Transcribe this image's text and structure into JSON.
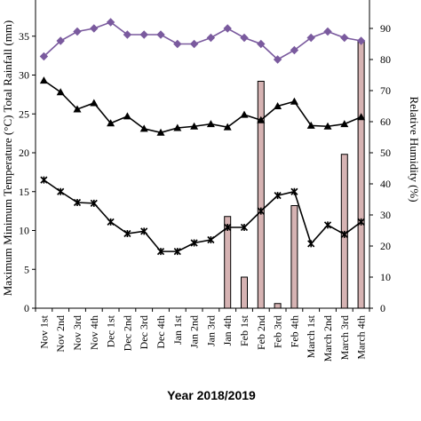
{
  "chart_data": {
    "type": "line",
    "xlabel": "Year 2018/2019",
    "ylabel_left": "Maximum Minimum Temperature (°C) Total Rainfall (mm)",
    "ylabel_right": "Relative Humidity (%)",
    "categories": [
      "Nov 1st",
      "Nov 2nd",
      "Nov 3rd",
      "Nov 4th",
      "Dec 1st",
      "Dec 2nd",
      "Dec 3rd",
      "Dec 4th",
      "Jan 1st",
      "Jan 2nd",
      "Jan 3rd",
      "Jan 4th",
      "Feb 1st",
      "Feb 2nd",
      "Feb 3rd",
      "Feb 4th",
      "March 1st",
      "March 2nd",
      "March 3rd",
      "March 4th"
    ],
    "ylim_left": [
      0,
      40
    ],
    "yticks_left": [
      0,
      5,
      10,
      15,
      20,
      25,
      30,
      35
    ],
    "ylim_right": [
      0,
      100
    ],
    "yticks_right": [
      0,
      10,
      20,
      30,
      40,
      50,
      60,
      70,
      80,
      90
    ],
    "grid": false,
    "series": [
      {
        "axis": "right",
        "kind": "bar",
        "color": "#d6b3b3",
        "values": [
          0,
          0,
          0,
          0,
          0,
          0,
          0,
          0,
          0,
          0,
          0,
          29.5,
          10,
          73,
          1.5,
          33,
          0,
          0,
          49.5,
          86
        ]
      },
      {
        "axis": "left",
        "kind": "line",
        "marker": "triangle",
        "color": "#000000",
        "values": [
          29.3,
          27.8,
          25.6,
          26.4,
          23.8,
          24.7,
          23.1,
          22.6,
          23.2,
          23.4,
          23.7,
          23.3,
          24.9,
          24.2,
          26.0,
          26.6,
          23.5,
          23.4,
          23.7,
          24.6
        ]
      },
      {
        "axis": "left",
        "kind": "line",
        "marker": "star",
        "color": "#000000",
        "values": [
          16.5,
          15.0,
          13.6,
          13.5,
          11.1,
          9.6,
          9.9,
          7.3,
          7.3,
          8.4,
          8.8,
          10.4,
          10.4,
          12.5,
          14.5,
          15.0,
          8.3,
          10.7,
          9.5,
          11.1
        ]
      },
      {
        "axis": "right",
        "kind": "line",
        "marker": "diamond",
        "color": "#7a5a9e",
        "values": [
          81,
          86,
          89,
          90,
          92,
          88,
          88,
          88,
          85,
          85,
          87,
          90,
          87,
          85,
          80,
          83,
          87,
          89,
          87,
          86
        ]
      }
    ]
  }
}
